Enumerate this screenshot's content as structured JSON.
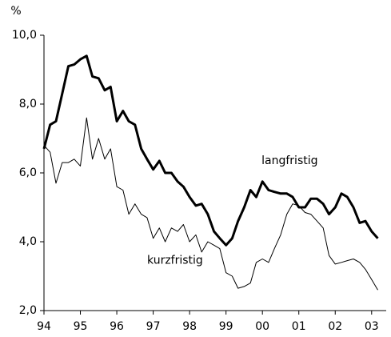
{
  "chart_data": {
    "type": "line",
    "y_unit": "%",
    "x": [
      1994,
      1994.17,
      1994.33,
      1994.5,
      1994.67,
      1994.83,
      1995,
      1995.17,
      1995.33,
      1995.5,
      1995.67,
      1995.83,
      1996,
      1996.17,
      1996.33,
      1996.5,
      1996.67,
      1996.83,
      1997,
      1997.17,
      1997.33,
      1997.5,
      1997.67,
      1997.83,
      1998,
      1998.17,
      1998.33,
      1998.5,
      1998.67,
      1998.83,
      1999,
      1999.17,
      1999.33,
      1999.5,
      1999.67,
      1999.83,
      2000,
      2000.17,
      2000.33,
      2000.5,
      2000.67,
      2000.83,
      2001,
      2001.17,
      2001.33,
      2001.5,
      2001.67,
      2001.83,
      2002,
      2002.17,
      2002.33,
      2002.5,
      2002.67,
      2002.83,
      2003,
      2003.17
    ],
    "series": [
      {
        "name": "langfristig",
        "color": "#000000",
        "width": 3,
        "values": [
          6.7,
          7.4,
          7.5,
          8.3,
          9.1,
          9.15,
          9.3,
          9.4,
          8.8,
          8.75,
          8.4,
          8.5,
          7.5,
          7.8,
          7.5,
          7.4,
          6.7,
          6.4,
          6.1,
          6.35,
          6.0,
          6.0,
          5.75,
          5.6,
          5.3,
          5.05,
          5.1,
          4.8,
          4.3,
          4.1,
          3.9,
          4.1,
          4.6,
          5.0,
          5.5,
          5.3,
          5.75,
          5.5,
          5.45,
          5.4,
          5.4,
          5.3,
          5.0,
          5.0,
          5.25,
          5.25,
          5.1,
          4.8,
          5.0,
          5.4,
          5.3,
          5.0,
          4.55,
          4.6,
          4.3,
          4.1
        ]
      },
      {
        "name": "kurzfristig",
        "color": "#000000",
        "width": 1,
        "values": [
          6.8,
          6.6,
          5.7,
          6.3,
          6.3,
          6.4,
          6.2,
          7.6,
          6.4,
          7.0,
          6.4,
          6.7,
          5.6,
          5.5,
          4.8,
          5.1,
          4.8,
          4.7,
          4.1,
          4.4,
          4.0,
          4.4,
          4.3,
          4.5,
          4.0,
          4.2,
          3.7,
          4.0,
          3.9,
          3.8,
          3.1,
          3.0,
          2.65,
          2.7,
          2.8,
          3.4,
          3.5,
          3.4,
          3.8,
          4.2,
          4.8,
          5.1,
          5.05,
          4.85,
          4.8,
          4.6,
          4.4,
          3.6,
          3.35,
          3.4,
          3.45,
          3.5,
          3.4,
          3.2,
          2.9,
          2.6
        ]
      }
    ],
    "xlim": [
      1994,
      2003.4
    ],
    "xticks": [
      {
        "value": 1994,
        "label": "94"
      },
      {
        "value": 1995,
        "label": "95"
      },
      {
        "value": 1996,
        "label": "96"
      },
      {
        "value": 1997,
        "label": "97"
      },
      {
        "value": 1998,
        "label": "98"
      },
      {
        "value": 1999,
        "label": "99"
      },
      {
        "value": 2000,
        "label": "00"
      },
      {
        "value": 2001,
        "label": "01"
      },
      {
        "value": 2002,
        "label": "02"
      },
      {
        "value": 2003,
        "label": "03"
      }
    ],
    "ylim": [
      2,
      10
    ],
    "yticks": [
      {
        "value": 2,
        "label": "2,0"
      },
      {
        "value": 4,
        "label": "4,0"
      },
      {
        "value": 6,
        "label": "6,0"
      },
      {
        "value": 8,
        "label": "8,0"
      },
      {
        "value": 10,
        "label": "10,0"
      }
    ],
    "grid": false
  }
}
